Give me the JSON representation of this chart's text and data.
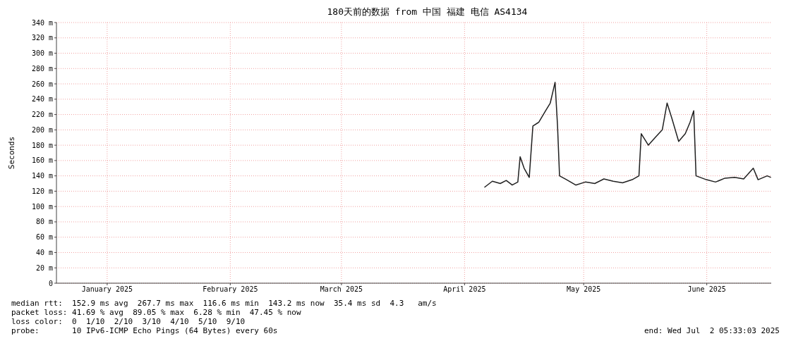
{
  "chart_data": {
    "type": "line",
    "title": "180天前的数据 from 中国 福建 电信 AS4134",
    "ylabel": "Seconds",
    "xlim": [
      "2025-01-03T05:33",
      "2025-07-02T05:33"
    ],
    "xticks": [
      {
        "value": "2025-01-16",
        "label": "January 2025"
      },
      {
        "value": "2025-02-16",
        "label": "February 2025"
      },
      {
        "value": "2025-03-16",
        "label": "March 2025"
      },
      {
        "value": "2025-04-16",
        "label": "April 2025"
      },
      {
        "value": "2025-05-16",
        "label": "May 2025"
      },
      {
        "value": "2025-06-16",
        "label": "June 2025"
      }
    ],
    "ylim": [
      0,
      340
    ],
    "yticks": [
      0,
      {
        "value": 20,
        "label": "20 m"
      },
      {
        "value": 40,
        "label": "40 m"
      },
      {
        "value": 60,
        "label": "60 m"
      },
      {
        "value": 80,
        "label": "80 m"
      },
      {
        "value": 100,
        "label": "100 m"
      },
      {
        "value": 120,
        "label": "120 m"
      },
      {
        "value": 140,
        "label": "140 m"
      },
      {
        "value": 160,
        "label": "160 m"
      },
      {
        "value": 180,
        "label": "180 m"
      },
      {
        "value": 200,
        "label": "200 m"
      },
      {
        "value": 220,
        "label": "220 m"
      },
      {
        "value": 240,
        "label": "240 m"
      },
      {
        "value": 260,
        "label": "260 m"
      },
      {
        "value": 280,
        "label": "280 m"
      },
      {
        "value": 300,
        "label": "300 m"
      },
      {
        "value": 320,
        "label": "320 m"
      },
      {
        "value": 340,
        "label": "340 m"
      }
    ],
    "grid": true,
    "marker": "none",
    "line_style": "solid",
    "x": [
      "2025-04-21",
      "2025-04-23",
      "2025-04-25",
      "2025-04-26T12:00",
      "2025-04-28",
      "2025-04-29T10:00",
      "2025-04-30",
      "2025-05-01",
      "2025-05-02T07:00",
      "2025-05-03T05:00",
      "2025-05-04T17:00",
      "2025-05-06T10:00",
      "2025-05-07T14:00",
      "2025-05-08T19:00",
      "2025-05-09T10:00",
      "2025-05-09T22:00",
      "2025-05-11T17:00",
      "2025-05-14",
      "2025-05-16T10:00",
      "2025-05-18T19:00",
      "2025-05-21T02:00",
      "2025-05-23T10:00",
      "2025-05-25T19:00",
      "2025-05-28T05:00",
      "2025-05-29T22:00",
      "2025-05-30T12:00",
      "2025-06-01T07:00",
      "2025-06-03",
      "2025-06-04T19:00",
      "2025-06-06",
      "2025-06-07T05:00",
      "2025-06-08T22:00",
      "2025-06-10T14:00",
      "2025-06-11T19:00",
      "2025-06-12T17:00",
      "2025-06-13T07:00",
      "2025-06-15T22:00",
      "2025-06-18T05:00",
      "2025-06-20T14:00",
      "2025-06-23",
      "2025-06-25T07:00",
      "2025-06-27T17:00",
      "2025-06-28T22:00",
      "2025-07-01T05:00",
      "2025-07-02T04:00"
    ],
    "series": [
      {
        "color": "#202020",
        "values": [
          125,
          133,
          130,
          134,
          128,
          132,
          165,
          150,
          138,
          205,
          210,
          225,
          235,
          262,
          205,
          140,
          135,
          128,
          132,
          130,
          136,
          133,
          131,
          135,
          140,
          195,
          180,
          190,
          200,
          235,
          215,
          185,
          195,
          210,
          225,
          140,
          135,
          132,
          137,
          138,
          136,
          150,
          135,
          140,
          138
        ]
      }
    ],
    "annotations": [
      "median rtt:  152.9 ms avg  267.7 ms max  116.6 ms min  143.2 ms now  35.4 ms sd  4.3   am/s",
      "packet loss: 41.69 % avg  89.05 % max  6.28 % min  47.45 % now",
      "loss color:  0  1/10  2/10  3/10  4/10  5/10  9/10",
      "probe:       10 IPv6-ICMP Echo Pings (64 Bytes) every 60s",
      "end: Wed Jul  2 05:33:03 2025"
    ]
  }
}
